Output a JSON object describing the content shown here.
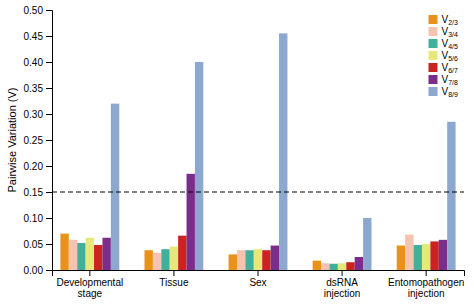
{
  "chart_data": {
    "type": "bar",
    "categories": [
      "Developmental\nstage",
      "Tissue",
      "Sex",
      "dsRNA\ninjection",
      "Entomopathogen\ninjection"
    ],
    "series": [
      {
        "name": "V2/3",
        "color": "#E8921A",
        "values": [
          0.07,
          0.038,
          0.03,
          0.018,
          0.047
        ]
      },
      {
        "name": "V3/4",
        "color": "#F5C4B0",
        "values": [
          0.058,
          0.033,
          0.038,
          0.013,
          0.068
        ]
      },
      {
        "name": "V4/5",
        "color": "#40B09A",
        "values": [
          0.052,
          0.04,
          0.038,
          0.012,
          0.048
        ]
      },
      {
        "name": "V5/6",
        "color": "#E8E87A",
        "values": [
          0.062,
          0.045,
          0.04,
          0.013,
          0.05
        ]
      },
      {
        "name": "V6/7",
        "color": "#CC2222",
        "values": [
          0.048,
          0.066,
          0.038,
          0.015,
          0.055
        ]
      },
      {
        "name": "V7/8",
        "color": "#7B2D8B",
        "values": [
          0.062,
          0.185,
          0.047,
          0.025,
          0.058
        ]
      },
      {
        "name": "V8/9",
        "color": "#8DA8D0",
        "values": [
          0.32,
          0.4,
          0.455,
          0.1,
          0.285
        ]
      }
    ],
    "ylabel": "Pairwise Variation (V)",
    "ylim": [
      0.0,
      0.5
    ],
    "yticks": [
      {
        "value": 0.0,
        "label": "0.00"
      },
      0.05,
      {
        "value": 0.1,
        "label": "0.10"
      },
      0.15,
      {
        "value": 0.2,
        "label": "0.20"
      },
      0.25,
      {
        "value": 0.3,
        "label": "0.30"
      },
      0.35,
      {
        "value": 0.4,
        "label": "0.40"
      },
      0.45,
      {
        "value": 0.5,
        "label": "0.50"
      }
    ],
    "hline": 0.15,
    "legend": "upper right",
    "grid": false
  }
}
